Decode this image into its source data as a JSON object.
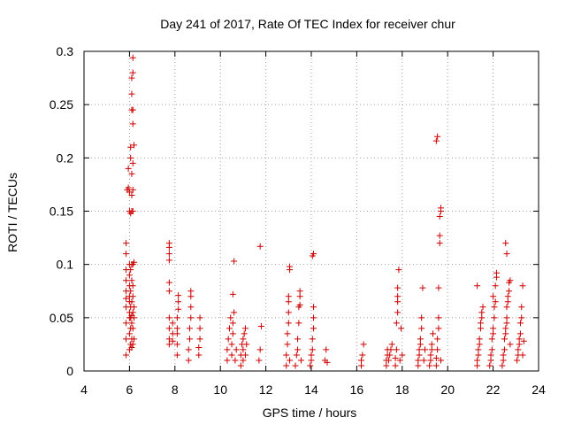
{
  "chart_data": {
    "type": "scatter",
    "title": "Day 241 of 2017, Rate Of TEC Index for receiver chur",
    "xlabel": "GPS time / hours",
    "ylabel": "ROTI / TECUs",
    "xlim": [
      4,
      24
    ],
    "ylim": [
      0,
      0.3
    ],
    "x_ticks": [
      4,
      6,
      8,
      10,
      12,
      14,
      16,
      18,
      20,
      22,
      24
    ],
    "x_tick_labels": [
      "4",
      "6",
      "8",
      "10",
      "12",
      "14",
      "16",
      "18",
      "20",
      "22",
      "24"
    ],
    "y_ticks": [
      0,
      0.05,
      0.1,
      0.15,
      0.2,
      0.25,
      0.3
    ],
    "y_tick_labels": [
      "0",
      "0.05",
      "0.1",
      "0.15",
      "0.2",
      "0.25",
      "0.3"
    ],
    "grid": true,
    "legend": "none",
    "marker": "plus",
    "color": "#cc0000",
    "series": [
      {
        "points": [
          [
            5.85,
            0.015
          ],
          [
            5.85,
            0.03
          ],
          [
            5.85,
            0.045
          ],
          [
            5.85,
            0.06
          ],
          [
            5.85,
            0.068
          ],
          [
            5.85,
            0.075
          ],
          [
            5.85,
            0.085
          ],
          [
            5.85,
            0.095
          ],
          [
            5.85,
            0.11
          ],
          [
            5.85,
            0.12
          ],
          [
            5.9,
            0.17
          ],
          [
            5.95,
            0.172
          ],
          [
            6.0,
            0.168
          ],
          [
            5.95,
            0.19
          ],
          [
            6.0,
            0.15
          ],
          [
            6.0,
            0.02
          ],
          [
            6.0,
            0.035
          ],
          [
            6.0,
            0.05
          ],
          [
            6.0,
            0.055
          ],
          [
            6.0,
            0.065
          ],
          [
            6.0,
            0.07
          ],
          [
            6.0,
            0.08
          ],
          [
            6.0,
            0.09
          ],
          [
            6.0,
            0.1
          ],
          [
            6.05,
            0.025
          ],
          [
            6.05,
            0.04
          ],
          [
            6.05,
            0.05
          ],
          [
            6.05,
            0.06
          ],
          [
            6.05,
            0.075
          ],
          [
            6.05,
            0.095
          ],
          [
            6.05,
            0.148
          ],
          [
            6.05,
            0.2
          ],
          [
            6.05,
            0.21
          ],
          [
            6.1,
            0.022
          ],
          [
            6.1,
            0.03
          ],
          [
            6.1,
            0.045
          ],
          [
            6.1,
            0.052
          ],
          [
            6.1,
            0.065
          ],
          [
            6.1,
            0.085
          ],
          [
            6.1,
            0.1
          ],
          [
            6.1,
            0.15
          ],
          [
            6.1,
            0.165
          ],
          [
            6.1,
            0.185
          ],
          [
            6.1,
            0.245
          ],
          [
            6.1,
            0.26
          ],
          [
            6.1,
            0.275
          ],
          [
            6.15,
            0.025
          ],
          [
            6.15,
            0.04
          ],
          [
            6.15,
            0.055
          ],
          [
            6.15,
            0.07
          ],
          [
            6.15,
            0.08
          ],
          [
            6.15,
            0.1
          ],
          [
            6.15,
            0.15
          ],
          [
            6.15,
            0.17
          ],
          [
            6.15,
            0.195
          ],
          [
            6.15,
            0.232
          ],
          [
            6.15,
            0.245
          ],
          [
            6.15,
            0.28
          ],
          [
            6.15,
            0.294
          ],
          [
            6.2,
            0.03
          ],
          [
            6.2,
            0.05
          ],
          [
            6.2,
            0.06
          ],
          [
            6.2,
            0.102
          ],
          [
            6.2,
            0.212
          ],
          [
            7.75,
            0.025
          ],
          [
            7.75,
            0.03
          ],
          [
            7.75,
            0.04
          ],
          [
            7.75,
            0.05
          ],
          [
            7.75,
            0.075
          ],
          [
            7.75,
            0.083
          ],
          [
            7.75,
            0.104
          ],
          [
            7.75,
            0.11
          ],
          [
            7.75,
            0.116
          ],
          [
            7.75,
            0.12
          ],
          [
            7.9,
            0.028
          ],
          [
            7.9,
            0.035
          ],
          [
            7.9,
            0.045
          ],
          [
            8.1,
            0.015
          ],
          [
            8.1,
            0.025
          ],
          [
            8.1,
            0.035
          ],
          [
            8.1,
            0.04
          ],
          [
            8.1,
            0.05
          ],
          [
            8.15,
            0.058
          ],
          [
            8.15,
            0.065
          ],
          [
            8.15,
            0.071
          ],
          [
            8.6,
            0.01
          ],
          [
            8.6,
            0.02
          ],
          [
            8.65,
            0.03
          ],
          [
            8.65,
            0.04
          ],
          [
            8.7,
            0.05
          ],
          [
            8.7,
            0.06
          ],
          [
            8.7,
            0.07
          ],
          [
            8.7,
            0.075
          ],
          [
            9.05,
            0.015
          ],
          [
            9.05,
            0.022
          ],
          [
            9.1,
            0.03
          ],
          [
            9.1,
            0.04
          ],
          [
            9.1,
            0.05
          ],
          [
            10.3,
            0.01
          ],
          [
            10.3,
            0.02
          ],
          [
            10.35,
            0.03
          ],
          [
            10.4,
            0.04
          ],
          [
            10.45,
            0.05
          ],
          [
            10.5,
            0.015
          ],
          [
            10.5,
            0.025
          ],
          [
            10.55,
            0.035
          ],
          [
            10.55,
            0.045
          ],
          [
            10.6,
            0.055
          ],
          [
            10.55,
            0.072
          ],
          [
            10.6,
            0.103
          ],
          [
            10.65,
            0.01
          ],
          [
            10.7,
            0.02
          ],
          [
            10.9,
            0.005
          ],
          [
            10.9,
            0.015
          ],
          [
            10.95,
            0.025
          ],
          [
            11.0,
            0.01
          ],
          [
            11.0,
            0.02
          ],
          [
            11.0,
            0.03
          ],
          [
            11.05,
            0.035
          ],
          [
            11.1,
            0.04
          ],
          [
            11.1,
            0.015
          ],
          [
            11.15,
            0.025
          ],
          [
            11.7,
            0.01
          ],
          [
            11.75,
            0.02
          ],
          [
            11.8,
            0.042
          ],
          [
            11.75,
            0.117
          ],
          [
            12.9,
            0.005
          ],
          [
            12.9,
            0.015
          ],
          [
            12.95,
            0.025
          ],
          [
            12.95,
            0.035
          ],
          [
            13.0,
            0.045
          ],
          [
            13.0,
            0.055
          ],
          [
            13.0,
            0.065
          ],
          [
            13.0,
            0.07
          ],
          [
            13.05,
            0.095
          ],
          [
            13.05,
            0.098
          ],
          [
            13.05,
            0.01
          ],
          [
            13.3,
            0.005
          ],
          [
            13.35,
            0.015
          ],
          [
            13.4,
            0.02
          ],
          [
            13.4,
            0.03
          ],
          [
            13.45,
            0.045
          ],
          [
            13.45,
            0.06
          ],
          [
            13.5,
            0.062
          ],
          [
            13.5,
            0.07
          ],
          [
            13.5,
            0.075
          ],
          [
            13.55,
            0.01
          ],
          [
            13.95,
            0.005
          ],
          [
            14.0,
            0.01
          ],
          [
            14.0,
            0.015
          ],
          [
            14.05,
            0.02
          ],
          [
            14.05,
            0.03
          ],
          [
            14.1,
            0.04
          ],
          [
            14.1,
            0.05
          ],
          [
            14.1,
            0.06
          ],
          [
            14.05,
            0.108
          ],
          [
            14.1,
            0.11
          ],
          [
            14.6,
            0.01
          ],
          [
            14.65,
            0.02
          ],
          [
            14.7,
            0.008
          ],
          [
            16.2,
            0.005
          ],
          [
            16.2,
            0.01
          ],
          [
            16.25,
            0.015
          ],
          [
            16.3,
            0.025
          ],
          [
            17.3,
            0.005
          ],
          [
            17.3,
            0.01
          ],
          [
            17.35,
            0.015
          ],
          [
            17.35,
            0.02
          ],
          [
            17.4,
            0.01
          ],
          [
            17.45,
            0.015
          ],
          [
            17.5,
            0.02
          ],
          [
            17.55,
            0.025
          ],
          [
            17.7,
            0.005
          ],
          [
            17.7,
            0.012
          ],
          [
            17.75,
            0.02
          ],
          [
            17.75,
            0.045
          ],
          [
            17.8,
            0.055
          ],
          [
            17.8,
            0.065
          ],
          [
            17.8,
            0.07
          ],
          [
            17.8,
            0.078
          ],
          [
            17.85,
            0.095
          ],
          [
            17.9,
            0.01
          ],
          [
            17.95,
            0.04
          ],
          [
            18.0,
            0.015
          ],
          [
            18.7,
            0.005
          ],
          [
            18.7,
            0.01
          ],
          [
            18.75,
            0.015
          ],
          [
            18.75,
            0.02
          ],
          [
            18.8,
            0.025
          ],
          [
            18.8,
            0.03
          ],
          [
            18.85,
            0.04
          ],
          [
            18.85,
            0.05
          ],
          [
            18.9,
            0.078
          ],
          [
            18.95,
            0.01
          ],
          [
            19.0,
            0.02
          ],
          [
            19.2,
            0.005
          ],
          [
            19.25,
            0.01
          ],
          [
            19.25,
            0.015
          ],
          [
            19.3,
            0.02
          ],
          [
            19.3,
            0.025
          ],
          [
            19.35,
            0.035
          ],
          [
            19.5,
            0.005
          ],
          [
            19.5,
            0.012
          ],
          [
            19.55,
            0.02
          ],
          [
            19.55,
            0.03
          ],
          [
            19.6,
            0.04
          ],
          [
            19.6,
            0.05
          ],
          [
            19.6,
            0.078
          ],
          [
            19.65,
            0.12
          ],
          [
            19.65,
            0.127
          ],
          [
            19.65,
            0.145
          ],
          [
            19.7,
            0.15
          ],
          [
            19.7,
            0.153
          ],
          [
            19.5,
            0.216
          ],
          [
            19.55,
            0.22
          ],
          [
            19.7,
            0.01
          ],
          [
            21.3,
            0.005
          ],
          [
            21.3,
            0.01
          ],
          [
            21.35,
            0.015
          ],
          [
            21.35,
            0.02
          ],
          [
            21.4,
            0.025
          ],
          [
            21.4,
            0.03
          ],
          [
            21.45,
            0.04
          ],
          [
            21.45,
            0.045
          ],
          [
            21.5,
            0.05
          ],
          [
            21.5,
            0.055
          ],
          [
            21.55,
            0.06
          ],
          [
            21.3,
            0.08
          ],
          [
            21.85,
            0.005
          ],
          [
            21.9,
            0.01
          ],
          [
            21.9,
            0.015
          ],
          [
            21.95,
            0.02
          ],
          [
            21.95,
            0.03
          ],
          [
            22.0,
            0.035
          ],
          [
            22.0,
            0.04
          ],
          [
            22.05,
            0.05
          ],
          [
            22.05,
            0.06
          ],
          [
            22.1,
            0.065
          ],
          [
            22.1,
            0.08
          ],
          [
            22.15,
            0.088
          ],
          [
            22.15,
            0.092
          ],
          [
            22.0,
            0.07
          ],
          [
            22.4,
            0.005
          ],
          [
            22.45,
            0.01
          ],
          [
            22.45,
            0.015
          ],
          [
            22.5,
            0.02
          ],
          [
            22.5,
            0.03
          ],
          [
            22.55,
            0.035
          ],
          [
            22.55,
            0.04
          ],
          [
            22.6,
            0.045
          ],
          [
            22.6,
            0.05
          ],
          [
            22.6,
            0.06
          ],
          [
            22.65,
            0.065
          ],
          [
            22.65,
            0.07
          ],
          [
            22.7,
            0.075
          ],
          [
            22.7,
            0.083
          ],
          [
            22.75,
            0.085
          ],
          [
            22.6,
            0.11
          ],
          [
            22.55,
            0.12
          ],
          [
            22.75,
            0.025
          ],
          [
            23.05,
            0.01
          ],
          [
            23.1,
            0.015
          ],
          [
            23.1,
            0.02
          ],
          [
            23.15,
            0.025
          ],
          [
            23.15,
            0.03
          ],
          [
            23.2,
            0.035
          ],
          [
            23.2,
            0.045
          ],
          [
            23.25,
            0.05
          ],
          [
            23.25,
            0.06
          ],
          [
            23.3,
            0.08
          ],
          [
            23.3,
            0.015
          ],
          [
            23.35,
            0.028
          ]
        ]
      }
    ]
  }
}
